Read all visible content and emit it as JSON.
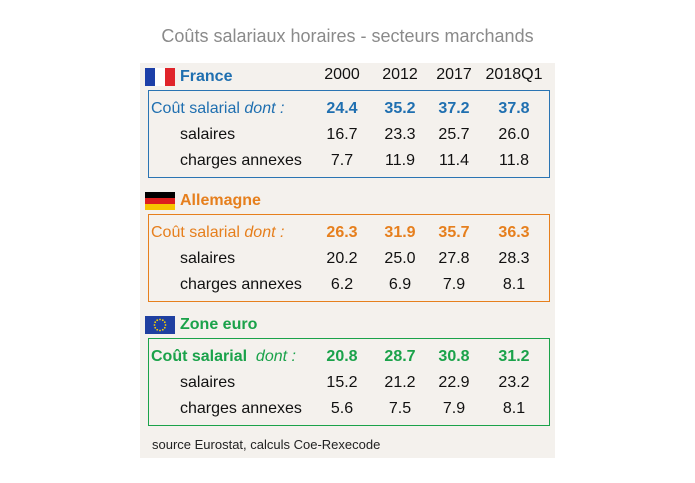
{
  "title": "Coûts salariaux horaires - secteurs marchands",
  "years": [
    "2000",
    "2012",
    "2017",
    "2018Q1"
  ],
  "source": "source Eurostat, calculs Coe-Rexecode",
  "colors": {
    "france": "#1f6fb0",
    "allemagne": "#e67f1d",
    "zone_euro": "#1aa24a"
  },
  "chart_data": {
    "type": "table",
    "title": "Coûts salariaux horaires - secteurs marchands",
    "columns": [
      "2000",
      "2012",
      "2017",
      "2018Q1"
    ],
    "groups": [
      {
        "name": "France",
        "flag": "france-flag-icon",
        "rows": [
          {
            "label": "Coût salarial",
            "qualifier": "dont :",
            "values": [
              "24.4",
              "35.2",
              "37.2",
              "37.8"
            ]
          },
          {
            "label": "salaires",
            "values": [
              "16.7",
              "23.3",
              "25.7",
              "26.0"
            ]
          },
          {
            "label": "charges annexes",
            "values": [
              "7.7",
              "11.9",
              "11.4",
              "11.8"
            ]
          }
        ]
      },
      {
        "name": "Allemagne",
        "flag": "germany-flag-icon",
        "rows": [
          {
            "label": "Coût salarial",
            "qualifier": "dont :",
            "values": [
              "26.3",
              "31.9",
              "35.7",
              "36.3"
            ]
          },
          {
            "label": "salaires",
            "values": [
              "20.2",
              "25.0",
              "27.8",
              "28.3"
            ]
          },
          {
            "label": "charges annexes",
            "values": [
              "6.2",
              "6.9",
              "7.9",
              "8.1"
            ]
          }
        ]
      },
      {
        "name": "Zone euro",
        "flag": "eu-flag-icon",
        "rows": [
          {
            "label": "Coût salarial",
            "qualifier": "dont :",
            "values": [
              "20.8",
              "28.7",
              "30.8",
              "31.2"
            ]
          },
          {
            "label": "salaires",
            "values": [
              "15.2",
              "21.2",
              "22.9",
              "23.2"
            ]
          },
          {
            "label": "charges annexes",
            "values": [
              "5.6",
              "7.5",
              "7.9",
              "8.1"
            ]
          }
        ]
      }
    ]
  }
}
